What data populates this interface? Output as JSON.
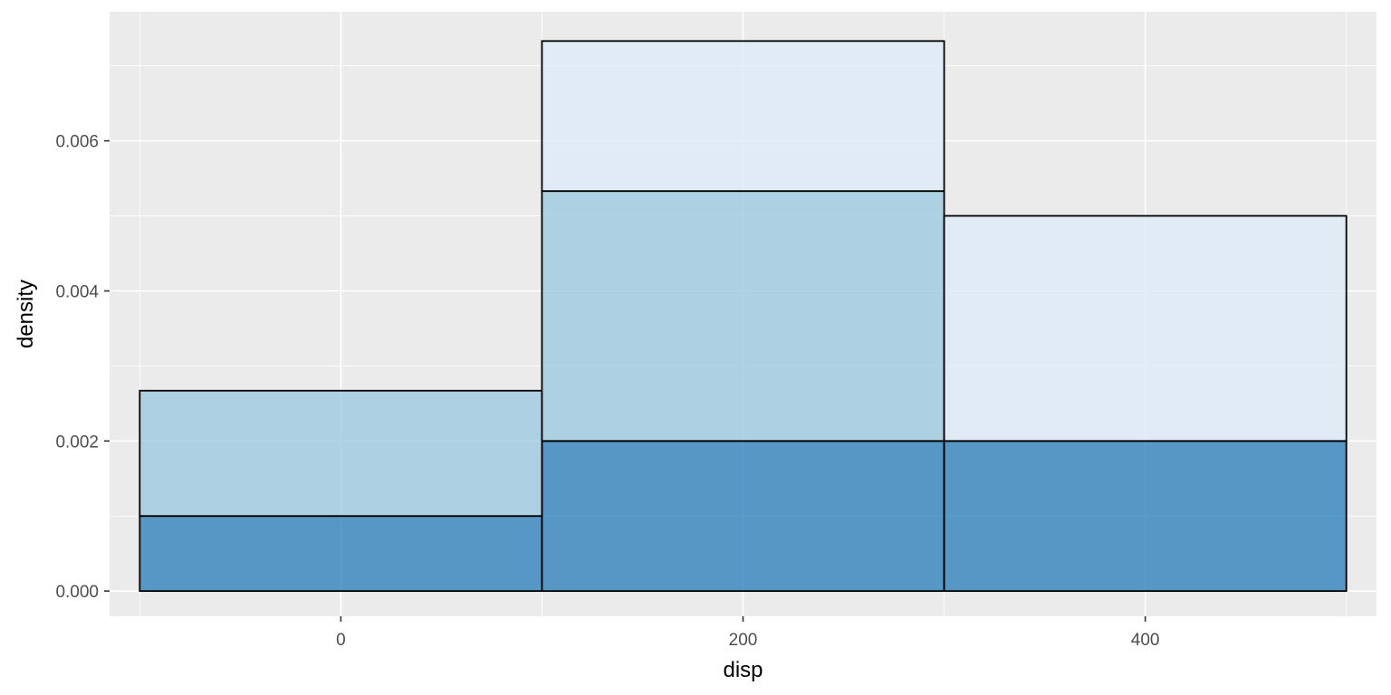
{
  "chart_data": {
    "type": "bar",
    "subtype": "stacked-histogram",
    "title": "",
    "xlabel": "disp",
    "ylabel": "density",
    "xlim": [
      -115,
      515
    ],
    "ylim": [
      -0.000336,
      0.00772
    ],
    "x_ticks": [
      0,
      200,
      400
    ],
    "y_ticks": [
      0.0,
      0.002,
      0.004,
      0.006
    ],
    "x_tick_labels": [
      "0",
      "200",
      "400"
    ],
    "y_tick_labels": [
      "0.000",
      "0.002",
      "0.004",
      "0.006"
    ],
    "bins": [
      {
        "x0": -100,
        "x1": 100
      },
      {
        "x0": 100,
        "x1": 300
      },
      {
        "x0": 300,
        "x1": 500
      }
    ],
    "series": [
      {
        "values": [
          0.001,
          0.002,
          0.002
        ],
        "color": "#3182bd"
      },
      {
        "values": [
          0.00167,
          0.00333,
          0.0
        ],
        "color": "#9ecae1"
      },
      {
        "values": [
          0.0,
          0.002,
          0.003
        ],
        "color": "#deebf7"
      }
    ],
    "bar_opacity": 0.8,
    "bar_outline": "#000000",
    "panel_background": "#ebebeb",
    "grid_color": "#ffffff",
    "grid": true,
    "legend": "none"
  }
}
